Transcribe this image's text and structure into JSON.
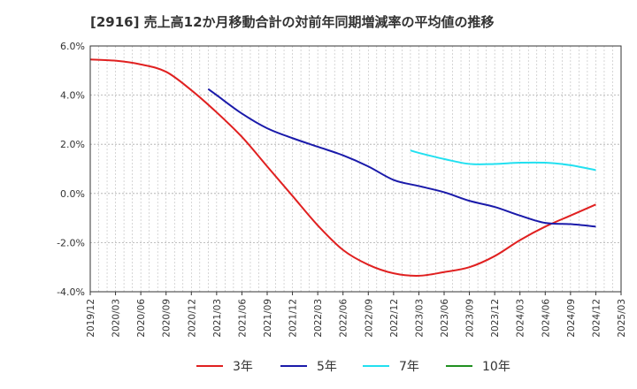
{
  "chart_data": {
    "type": "line",
    "title": "[2916]  売上高12か月移動合計の対前年同期増減率の平均値の推移",
    "xlabel": "",
    "ylabel": "",
    "ylim": [
      -4.0,
      6.0
    ],
    "yticks": [
      "6.0%",
      "4.0%",
      "2.0%",
      "0.0%",
      "-2.0%",
      "-4.0%"
    ],
    "ytick_values": [
      6,
      4,
      2,
      0,
      -2,
      -4
    ],
    "xticks": [
      "2019/12",
      "2020/03",
      "2020/06",
      "2020/09",
      "2020/12",
      "2021/03",
      "2021/06",
      "2021/09",
      "2021/12",
      "2022/03",
      "2022/06",
      "2022/09",
      "2022/12",
      "2023/03",
      "2023/06",
      "2023/09",
      "2023/12",
      "2024/03",
      "2024/06",
      "2024/09",
      "2024/12",
      "2025/03"
    ],
    "grid": true,
    "legend_position": "bottom",
    "series": [
      {
        "name": "3年",
        "color": "#e02020",
        "points": [
          [
            "2019/12",
            5.45
          ],
          [
            "2020/03",
            5.4
          ],
          [
            "2020/06",
            5.25
          ],
          [
            "2020/09",
            4.95
          ],
          [
            "2020/12",
            4.2
          ],
          [
            "2021/03",
            3.3
          ],
          [
            "2021/06",
            2.3
          ],
          [
            "2021/09",
            1.1
          ],
          [
            "2021/12",
            -0.1
          ],
          [
            "2022/03",
            -1.3
          ],
          [
            "2022/06",
            -2.3
          ],
          [
            "2022/09",
            -2.9
          ],
          [
            "2022/12",
            -3.25
          ],
          [
            "2023/03",
            -3.35
          ],
          [
            "2023/06",
            -3.2
          ],
          [
            "2023/09",
            -3.0
          ],
          [
            "2023/12",
            -2.55
          ],
          [
            "2024/03",
            -1.9
          ],
          [
            "2024/06",
            -1.35
          ],
          [
            "2024/09",
            -0.9
          ],
          [
            "2024/12",
            -0.45
          ]
        ]
      },
      {
        "name": "5年",
        "color": "#1a1aaa",
        "points": [
          [
            "2021/02",
            4.25
          ],
          [
            "2021/03",
            4.0
          ],
          [
            "2021/06",
            3.25
          ],
          [
            "2021/09",
            2.65
          ],
          [
            "2021/12",
            2.25
          ],
          [
            "2022/03",
            1.9
          ],
          [
            "2022/06",
            1.55
          ],
          [
            "2022/09",
            1.1
          ],
          [
            "2022/12",
            0.55
          ],
          [
            "2023/03",
            0.3
          ],
          [
            "2023/06",
            0.05
          ],
          [
            "2023/09",
            -0.3
          ],
          [
            "2023/12",
            -0.55
          ],
          [
            "2024/03",
            -0.9
          ],
          [
            "2024/06",
            -1.2
          ],
          [
            "2024/09",
            -1.25
          ],
          [
            "2024/12",
            -1.35
          ]
        ]
      },
      {
        "name": "7年",
        "color": "#22e0f0",
        "points": [
          [
            "2023/02",
            1.75
          ],
          [
            "2023/03",
            1.65
          ],
          [
            "2023/06",
            1.4
          ],
          [
            "2023/09",
            1.2
          ],
          [
            "2023/12",
            1.2
          ],
          [
            "2024/03",
            1.25
          ],
          [
            "2024/06",
            1.25
          ],
          [
            "2024/09",
            1.15
          ],
          [
            "2024/12",
            0.95
          ]
        ]
      },
      {
        "name": "10年",
        "color": "#209020",
        "points": []
      }
    ]
  }
}
